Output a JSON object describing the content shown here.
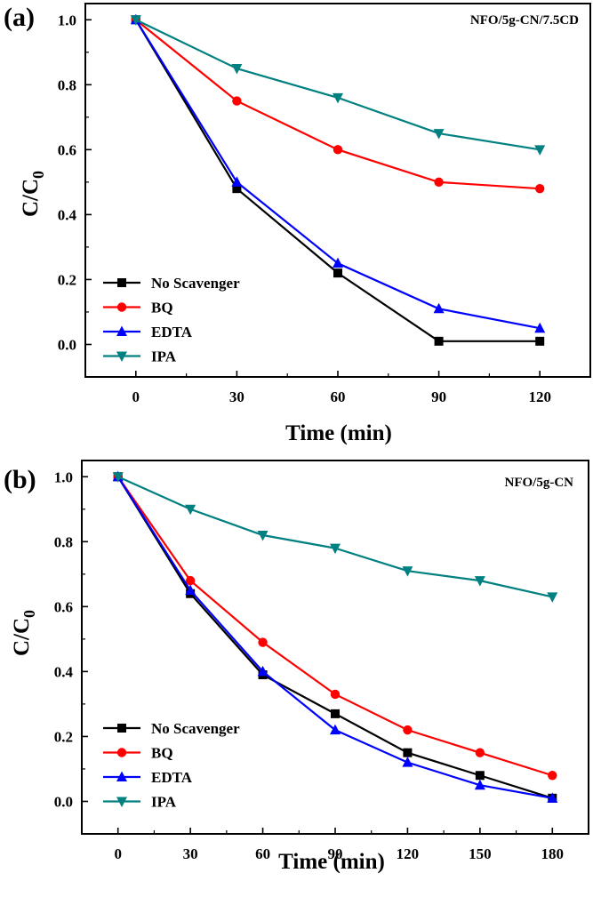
{
  "chart_data": [
    {
      "type": "line",
      "panel_label": "(a)",
      "annotation": "NFO/5g-CN/7.5CD",
      "xlabel": "Time (min)",
      "ylabel": "C/C",
      "ylabel_sub": "0",
      "xlim": [
        -15,
        135
      ],
      "ylim": [
        -0.1,
        1.05
      ],
      "x": [
        0,
        30,
        60,
        90,
        120
      ],
      "x_ticks": [
        0,
        30,
        60,
        90,
        120
      ],
      "y_ticks": [
        0.0,
        0.2,
        0.4,
        0.6,
        0.8,
        1.0
      ],
      "y_tick_labels": [
        "0.0",
        "0.2",
        "0.4",
        "0.6",
        "0.8",
        "1.0"
      ],
      "legend_position": "bottom-left",
      "series": [
        {
          "name": "No Scavenger",
          "color": "#000000",
          "marker": "square",
          "values": [
            1.0,
            0.48,
            0.22,
            0.01,
            0.01
          ]
        },
        {
          "name": "BQ",
          "color": "#ff0000",
          "marker": "circle",
          "values": [
            1.0,
            0.75,
            0.6,
            0.5,
            0.48
          ]
        },
        {
          "name": "EDTA",
          "color": "#0000ff",
          "marker": "triangle-up",
          "values": [
            1.0,
            0.5,
            0.25,
            0.11,
            0.05
          ]
        },
        {
          "name": "IPA",
          "color": "#008080",
          "marker": "triangle-down",
          "values": [
            1.0,
            0.85,
            0.76,
            0.65,
            0.6
          ]
        }
      ]
    },
    {
      "type": "line",
      "panel_label": "(b)",
      "annotation": "NFO/5g-CN",
      "xlabel": "Time (min)",
      "ylabel": "C/C",
      "ylabel_sub": "0",
      "xlim": [
        -15,
        195
      ],
      "ylim": [
        -0.1,
        1.05
      ],
      "x": [
        0,
        30,
        60,
        90,
        120,
        150,
        180
      ],
      "x_ticks": [
        0,
        30,
        60,
        90,
        120,
        150,
        180
      ],
      "y_ticks": [
        0.0,
        0.2,
        0.4,
        0.6,
        0.8,
        1.0
      ],
      "y_tick_labels": [
        "0.0",
        "0.2",
        "0.4",
        "0.6",
        "0.8",
        "1.0"
      ],
      "legend_position": "bottom-left",
      "series": [
        {
          "name": "No Scavenger",
          "color": "#000000",
          "marker": "square",
          "values": [
            1.0,
            0.64,
            0.39,
            0.27,
            0.15,
            0.08,
            0.01
          ]
        },
        {
          "name": "BQ",
          "color": "#ff0000",
          "marker": "circle",
          "values": [
            1.0,
            0.68,
            0.49,
            0.33,
            0.22,
            0.15,
            0.08
          ]
        },
        {
          "name": "EDTA",
          "color": "#0000ff",
          "marker": "triangle-up",
          "values": [
            1.0,
            0.65,
            0.4,
            0.22,
            0.12,
            0.05,
            0.01
          ]
        },
        {
          "name": "IPA",
          "color": "#008080",
          "marker": "triangle-down",
          "values": [
            1.0,
            0.9,
            0.82,
            0.78,
            0.71,
            0.68,
            0.63
          ]
        }
      ]
    }
  ]
}
